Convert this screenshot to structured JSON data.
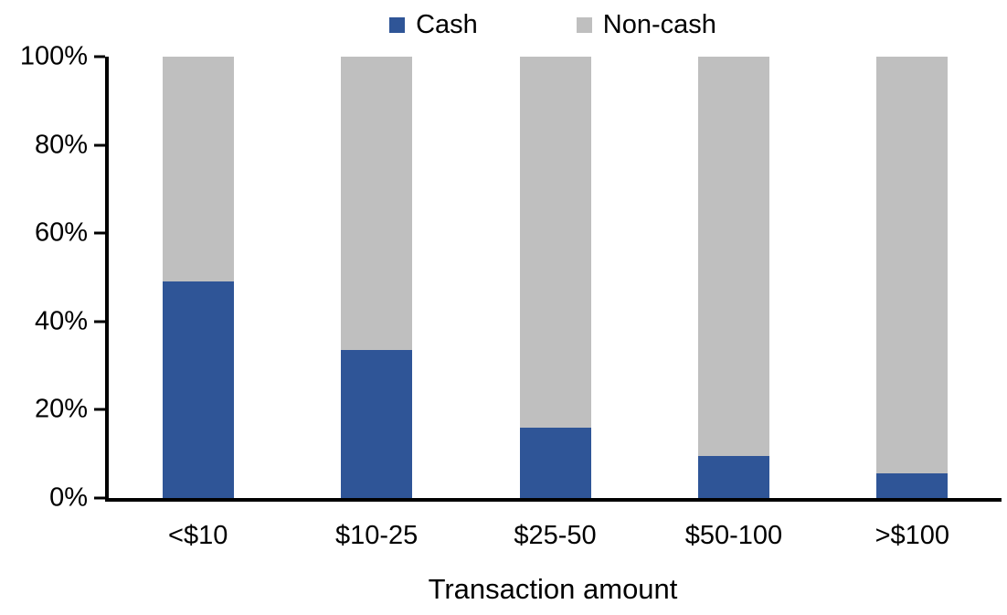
{
  "chart_data": {
    "type": "bar",
    "variant": "100-percent-stacked-column",
    "title": "",
    "xlabel": "Transaction amount",
    "ylabel": "",
    "categories": [
      "<$10",
      "$10-25",
      "$25-50",
      "$50-100",
      ">$100"
    ],
    "series": [
      {
        "name": "Cash",
        "color": "#2F5597",
        "values": [
          49,
          33.5,
          16,
          9.6,
          5.6
        ]
      },
      {
        "name": "Non-cash",
        "color": "#BFBFBF",
        "values": [
          51,
          66.5,
          84,
          90.4,
          94.4
        ]
      }
    ],
    "ylim": [
      0,
      100
    ],
    "yticks": [
      "0%",
      "20%",
      "40%",
      "60%",
      "80%",
      "100%"
    ],
    "grid": false,
    "legend_position": "top-center",
    "axis_color": "#000000",
    "background_color": "#FFFFFF"
  }
}
